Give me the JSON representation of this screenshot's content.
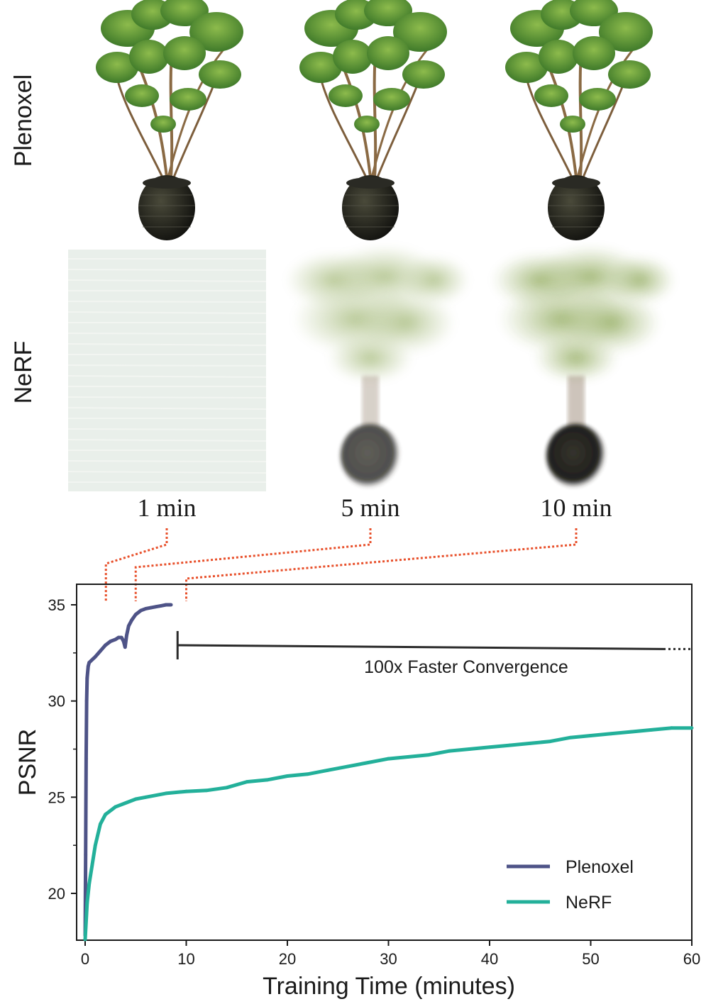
{
  "rows": [
    {
      "label": "Plenoxel",
      "kind": "plenoxel"
    },
    {
      "label": "NeRF",
      "kind": "nerf"
    }
  ],
  "times": [
    "1 min",
    "5 min",
    "10 min"
  ],
  "marker_times_min": [
    1,
    5,
    10
  ],
  "colors": {
    "plenoxel": "#4e5387",
    "nerf": "#23b09a",
    "leader": "#e8502b",
    "axis": "#1a1a1a"
  },
  "annotation": {
    "text": "100x Faster Convergence",
    "from_x": 9,
    "to_x": 60,
    "y_start": 32.9,
    "y_end": 32.7
  },
  "chart_data": {
    "type": "line",
    "xlabel": "Training Time (minutes)",
    "ylabel": "PSNR",
    "xlim": [
      -1,
      60
    ],
    "ylim": [
      17.5,
      36
    ],
    "xticks": [
      0,
      10,
      20,
      30,
      40,
      50,
      60
    ],
    "yticks": [
      20,
      25,
      30,
      35
    ],
    "grid": false,
    "legend_position": "bottom-right",
    "series": [
      {
        "name": "Plenoxel",
        "x": [
          0,
          0.05,
          0.1,
          0.15,
          0.2,
          0.3,
          0.4,
          0.6,
          0.8,
          1.0,
          1.5,
          2.0,
          2.5,
          3.0,
          3.3,
          3.6,
          3.8,
          3.95,
          4.1,
          4.3,
          4.6,
          5.0,
          5.5,
          6.0,
          6.5,
          7.0,
          7.5,
          8.0,
          8.5
        ],
        "y": [
          17.8,
          22.0,
          27.0,
          30.0,
          31.2,
          31.8,
          32.0,
          32.1,
          32.2,
          32.3,
          32.6,
          32.9,
          33.1,
          33.2,
          33.3,
          33.3,
          33.1,
          32.8,
          33.4,
          33.9,
          34.2,
          34.5,
          34.7,
          34.8,
          34.85,
          34.9,
          34.95,
          35.0,
          35.0
        ]
      },
      {
        "name": "NeRF",
        "x": [
          0,
          0.2,
          0.4,
          0.7,
          1.0,
          1.5,
          2.0,
          3.0,
          4.0,
          5.0,
          6.0,
          8.0,
          10,
          12,
          14,
          16,
          18,
          20,
          22,
          24,
          26,
          28,
          30,
          32,
          34,
          36,
          38,
          40,
          42,
          44,
          46,
          48,
          50,
          52,
          54,
          56,
          58,
          60
        ],
        "y": [
          17.6,
          19.5,
          20.5,
          21.5,
          22.5,
          23.6,
          24.1,
          24.5,
          24.7,
          24.9,
          25.0,
          25.2,
          25.3,
          25.35,
          25.5,
          25.8,
          25.9,
          26.1,
          26.2,
          26.4,
          26.6,
          26.8,
          27.0,
          27.1,
          27.2,
          27.4,
          27.5,
          27.6,
          27.7,
          27.8,
          27.9,
          28.1,
          28.2,
          28.3,
          28.4,
          28.5,
          28.6,
          28.6
        ]
      }
    ]
  }
}
